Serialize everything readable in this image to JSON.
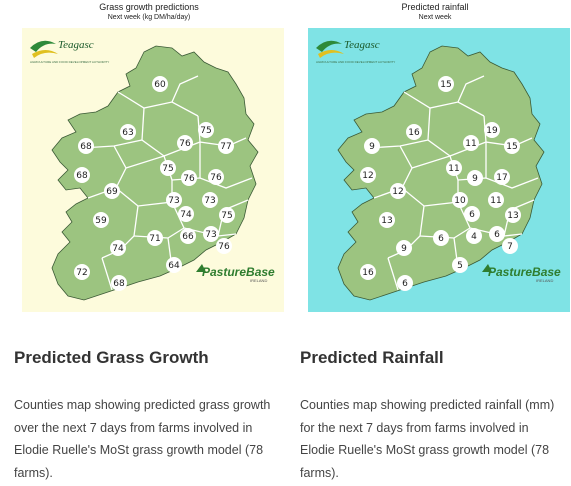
{
  "cards": [
    {
      "map_title": "Grass growth predictions",
      "map_subtitle": "Next week (kg DM/ha/day)",
      "background": "#fdfbdc",
      "heading": "Predicted Grass Growth",
      "description": "Counties map showing predicted grass growth over the next 7 days from farms involved in Elodie Ruelle's MoSt grass growth model (78 farms).",
      "values": [
        "60",
        "63",
        "75",
        "68",
        "76",
        "77",
        "68",
        "75",
        "76",
        "76",
        "69",
        "73",
        "73",
        "74",
        "75",
        "59",
        "71",
        "66",
        "73",
        "74",
        "76",
        "72",
        "64",
        "68"
      ]
    },
    {
      "map_title": "Predicted rainfall",
      "map_subtitle": "Next week",
      "background": "#7fe3e5",
      "heading": "Predicted Rainfall",
      "description": "Counties map showing predicted rainfall (mm) for the next 7 days from farms involved in Elodie Ruelle's MoSt grass growth model (78 farms).",
      "values": [
        "15",
        "16",
        "19",
        "9",
        "11",
        "15",
        "12",
        "11",
        "9",
        "17",
        "12",
        "10",
        "11",
        "6",
        "13",
        "13",
        "6",
        "4",
        "6",
        "9",
        "7",
        "16",
        "5",
        "6"
      ]
    }
  ],
  "logos": {
    "teagasc": "Teagasc",
    "teagasc_sub": "AGRICULTURE AND FOOD DEVELOPMENT AUTHORITY",
    "pasturebase": "PastureBase",
    "pasturebase_sub": "IRELAND"
  },
  "colors": {
    "land": "#9cc480",
    "border": "#ffffff",
    "outline": "#3b5a36"
  }
}
